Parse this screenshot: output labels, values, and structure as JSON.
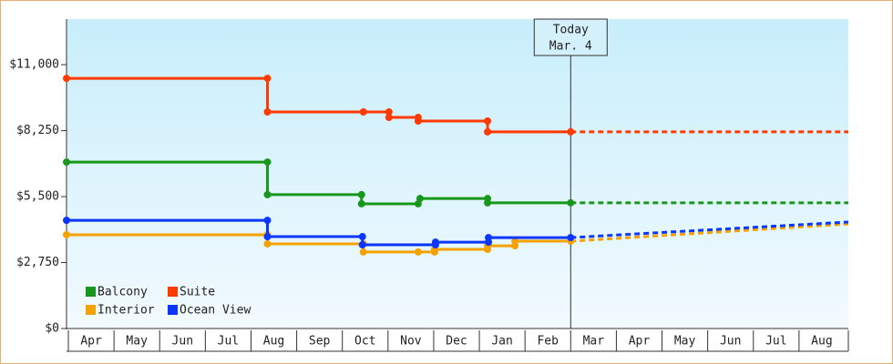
{
  "chart_data": {
    "type": "line",
    "categories": [
      "Apr",
      "May",
      "Jun",
      "Jul",
      "Aug",
      "Sep",
      "Oct",
      "Nov",
      "Dec",
      "Jan",
      "Feb",
      "Mar",
      "Apr",
      "May",
      "Jun",
      "Jul",
      "Aug"
    ],
    "xlim": [
      0,
      17.12
    ],
    "ylim": [
      0,
      12900
    ],
    "yticks": [
      {
        "value": 0,
        "label": "$0"
      },
      {
        "value": 2750,
        "label": "$2,750"
      },
      {
        "value": 5500,
        "label": "$5,500"
      },
      {
        "value": 8250,
        "label": "$8,250"
      },
      {
        "value": 11000,
        "label": "$11,000"
      }
    ],
    "today": {
      "x": 11.04,
      "label": [
        "Today",
        "Mar. 4"
      ]
    },
    "series": [
      {
        "name": "Balcony",
        "color": "#18981a",
        "x": [
          0,
          4.4,
          4.4,
          6.46,
          6.46,
          7.7,
          7.74,
          9.22,
          9.22,
          11.04
        ],
        "values": [
          6940,
          6940,
          5580,
          5580,
          5200,
          5200,
          5420,
          5420,
          5240,
          5240
        ],
        "forecast_x": [
          11.04,
          17.12
        ],
        "forecast_values": [
          5240,
          5240
        ]
      },
      {
        "name": "Suite",
        "color": "#ff3a00",
        "x": [
          0,
          4.4,
          4.4,
          6.5,
          7.06,
          7.06,
          7.7,
          7.7,
          9.22,
          9.22,
          11.04
        ],
        "values": [
          10430,
          10430,
          9030,
          9030,
          9030,
          8800,
          8800,
          8650,
          8650,
          8200,
          8200
        ],
        "forecast_x": [
          11.04,
          17.12
        ],
        "forecast_values": [
          8200,
          8200
        ]
      },
      {
        "name": "Interior",
        "color": "#f5a200",
        "x": [
          0,
          4.4,
          4.4,
          6.5,
          6.5,
          7.7,
          8.06,
          8.06,
          9.22,
          9.22,
          9.82,
          9.82,
          11.04
        ],
        "values": [
          3910,
          3910,
          3530,
          3530,
          3190,
          3190,
          3190,
          3300,
          3300,
          3450,
          3450,
          3640,
          3640
        ],
        "forecast_x": [
          11.04,
          17.12
        ],
        "forecast_values": [
          3640,
          4360
        ]
      },
      {
        "name": "Ocean View",
        "color": "#0a36ff",
        "x": [
          0,
          4.4,
          4.4,
          6.48,
          6.48,
          8.08,
          8.08,
          9.24,
          9.24,
          11.04
        ],
        "values": [
          4510,
          4510,
          3830,
          3830,
          3490,
          3490,
          3600,
          3600,
          3790,
          3790
        ],
        "forecast_x": [
          11.04,
          17.12
        ],
        "forecast_values": [
          3790,
          4440
        ]
      }
    ]
  }
}
